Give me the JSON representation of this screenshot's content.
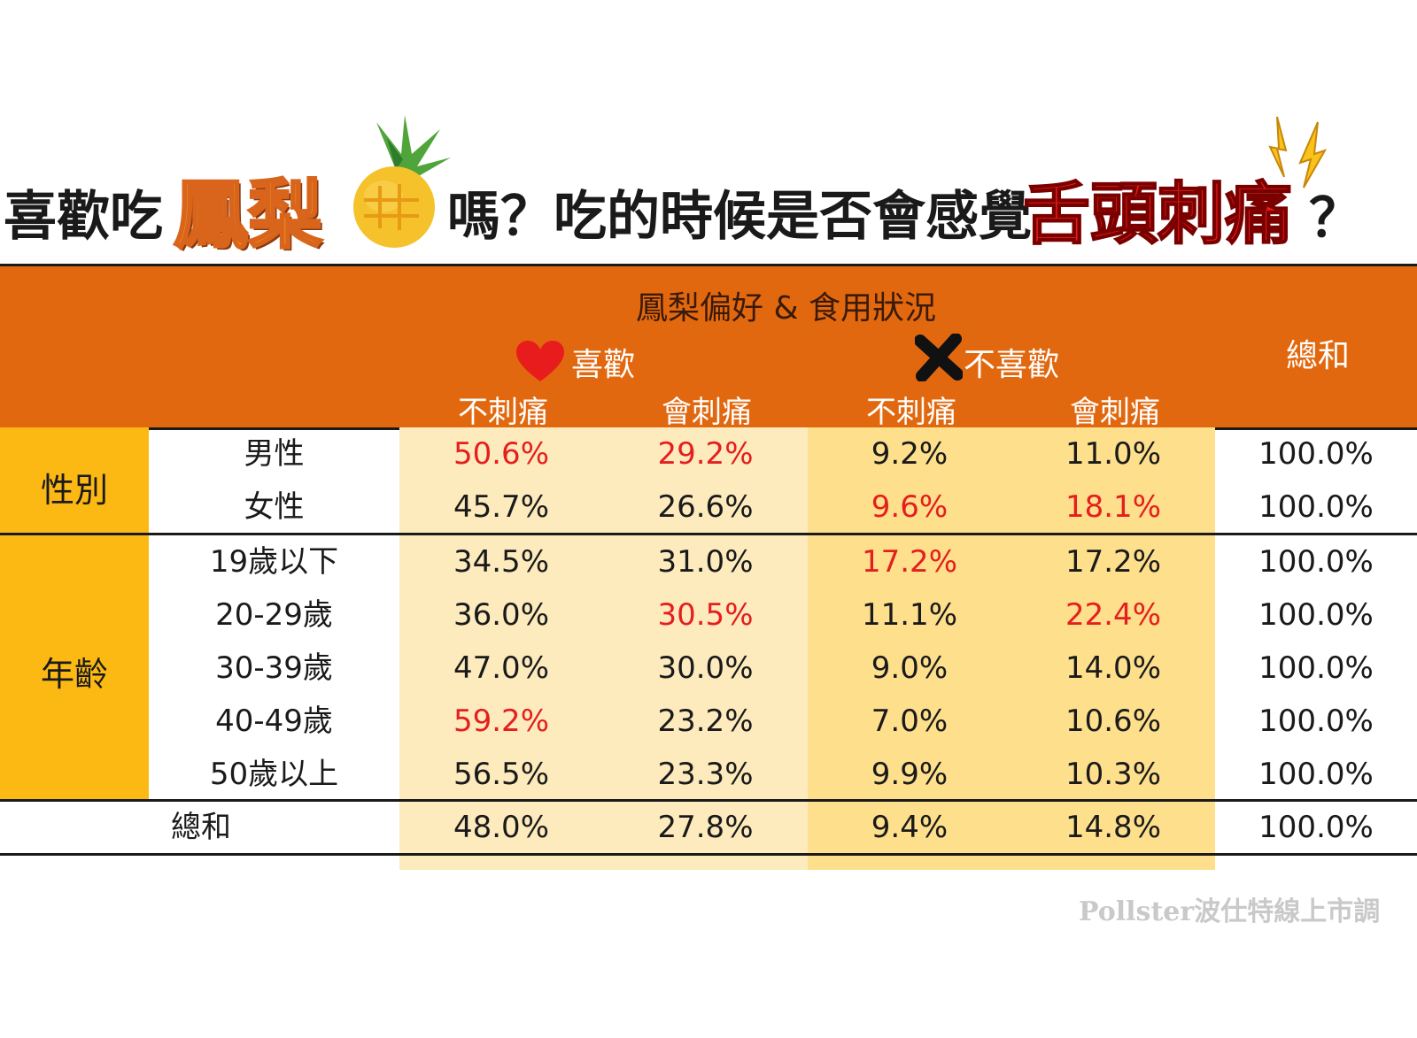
{
  "title": {
    "part1": "喜歡吃",
    "part2": "鳳梨",
    "part3": "嗎？吃的時候是否會感覺",
    "part4": "舌頭刺痛",
    "part5": "？"
  },
  "table": {
    "group_header": "鳳梨偏好 & 食用狀況",
    "like_header": "喜歡",
    "dislike_header": "不喜歡",
    "total_header": "總和",
    "sub_headers": [
      "不刺痛",
      "會刺痛",
      "不刺痛",
      "會刺痛"
    ],
    "categories": [
      {
        "label": "性別",
        "row_count": 2
      },
      {
        "label": "年齡",
        "row_count": 5
      }
    ],
    "rows": [
      {
        "label": "男性",
        "values": [
          "50.6%",
          "29.2%",
          "9.2%",
          "11.0%",
          "100.0%"
        ],
        "highlight": [
          true,
          true,
          false,
          false,
          false
        ]
      },
      {
        "label": "女性",
        "values": [
          "45.7%",
          "26.6%",
          "9.6%",
          "18.1%",
          "100.0%"
        ],
        "highlight": [
          false,
          false,
          true,
          true,
          false
        ]
      },
      {
        "label": "19歲以下",
        "values": [
          "34.5%",
          "31.0%",
          "17.2%",
          "17.2%",
          "100.0%"
        ],
        "highlight": [
          false,
          false,
          true,
          false,
          false
        ]
      },
      {
        "label": "20-29歲",
        "values": [
          "36.0%",
          "30.5%",
          "11.1%",
          "22.4%",
          "100.0%"
        ],
        "highlight": [
          false,
          true,
          false,
          true,
          false
        ]
      },
      {
        "label": "30-39歲",
        "values": [
          "47.0%",
          "30.0%",
          "9.0%",
          "14.0%",
          "100.0%"
        ],
        "highlight": [
          false,
          false,
          false,
          false,
          false
        ]
      },
      {
        "label": "40-49歲",
        "values": [
          "59.2%",
          "23.2%",
          "7.0%",
          "10.6%",
          "100.0%"
        ],
        "highlight": [
          true,
          false,
          false,
          false,
          false
        ]
      },
      {
        "label": "50歲以上",
        "values": [
          "56.5%",
          "23.3%",
          "9.9%",
          "10.3%",
          "100.0%"
        ],
        "highlight": [
          false,
          false,
          false,
          false,
          false
        ]
      }
    ],
    "total_row": {
      "label": "總和",
      "values": [
        "48.0%",
        "27.8%",
        "9.4%",
        "14.8%",
        "100.0%"
      ]
    }
  },
  "chart_data": {
    "type": "table",
    "columns": [
      "喜歡 不刺痛",
      "喜歡 會刺痛",
      "不喜歡 不刺痛",
      "不喜歡 會刺痛",
      "總和"
    ],
    "rows": [
      {
        "group": "性別",
        "label": "男性",
        "values": [
          50.6,
          29.2,
          9.2,
          11.0,
          100.0
        ]
      },
      {
        "group": "性別",
        "label": "女性",
        "values": [
          45.7,
          26.6,
          9.6,
          18.1,
          100.0
        ]
      },
      {
        "group": "年齡",
        "label": "19歲以下",
        "values": [
          34.5,
          31.0,
          17.2,
          17.2,
          100.0
        ]
      },
      {
        "group": "年齡",
        "label": "20-29歲",
        "values": [
          36.0,
          30.5,
          11.1,
          22.4,
          100.0
        ]
      },
      {
        "group": "年齡",
        "label": "30-39歲",
        "values": [
          47.0,
          30.0,
          9.0,
          14.0,
          100.0
        ]
      },
      {
        "group": "年齡",
        "label": "40-49歲",
        "values": [
          59.2,
          23.2,
          7.0,
          10.6,
          100.0
        ]
      },
      {
        "group": "年齡",
        "label": "50歲以上",
        "values": [
          56.5,
          23.3,
          9.9,
          10.3,
          100.0
        ]
      },
      {
        "group": "",
        "label": "總和",
        "values": [
          48.0,
          27.8,
          9.4,
          14.8,
          100.0
        ]
      }
    ]
  },
  "watermark": "Pollster波仕特線上市調",
  "colors": {
    "header_bg": "#E2680F",
    "category_bg": "#FDB913",
    "like_band": "#FDEBBE",
    "dislike_band": "#FDDF8C",
    "highlight_text": "#E51E1E"
  },
  "icons": {
    "pineapple": "pineapple-icon",
    "lightning": "lightning-icon",
    "heart": "heart-icon",
    "cross": "x-mark-icon"
  }
}
